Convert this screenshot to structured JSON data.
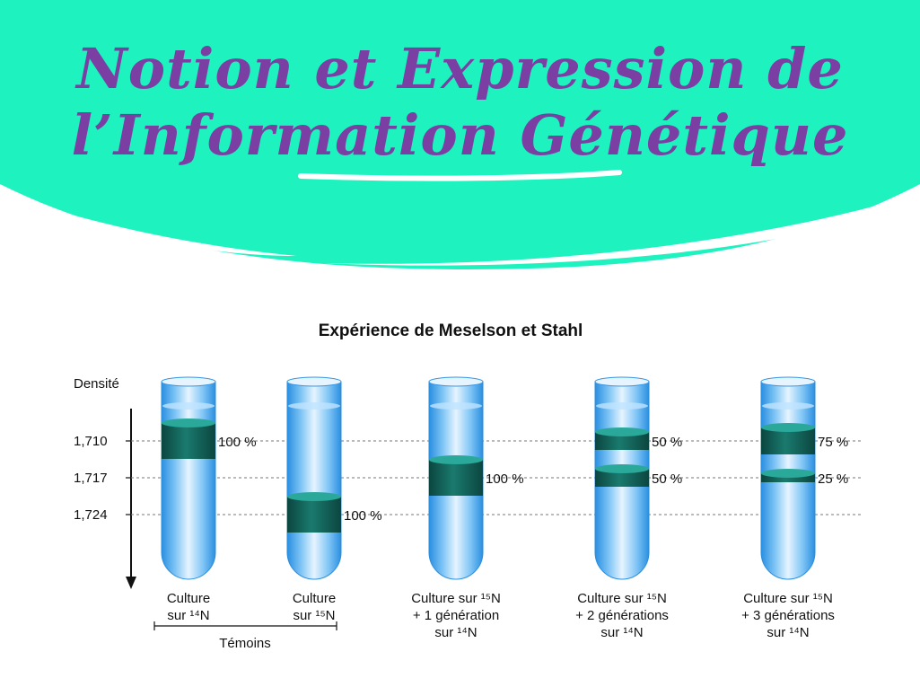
{
  "page": {
    "title_line1": "Notion et Expression  de",
    "title_line2": "l’Information  Génétique"
  },
  "diagram": {
    "title": "Expérience de Meselson et Stahl",
    "y_axis_label": "Densité",
    "density_levels": [
      {
        "key": "d1710",
        "label": "1,710"
      },
      {
        "key": "d1717",
        "label": "1,717"
      },
      {
        "key": "d1724",
        "label": "1,724"
      }
    ],
    "tubes": [
      {
        "label_lines": [
          "Culture",
          "sur ¹⁴N"
        ],
        "bands": [
          {
            "density": "d1710",
            "percent": 100,
            "label": "100 %"
          }
        ]
      },
      {
        "label_lines": [
          "Culture",
          "sur ¹⁵N"
        ],
        "bands": [
          {
            "density": "d1724",
            "percent": 100,
            "label": "100 %"
          }
        ]
      },
      {
        "label_lines": [
          "Culture sur ¹⁵N",
          "+ 1 génération",
          "sur ¹⁴N"
        ],
        "bands": [
          {
            "density": "d1717",
            "percent": 100,
            "label": "100 %"
          }
        ]
      },
      {
        "label_lines": [
          "Culture sur ¹⁵N",
          "+ 2 générations",
          "sur ¹⁴N"
        ],
        "bands": [
          {
            "density": "d1710",
            "percent": 50,
            "label": "50 %"
          },
          {
            "density": "d1717",
            "percent": 50,
            "label": "50 %"
          }
        ]
      },
      {
        "label_lines": [
          "Culture sur ¹⁵N",
          "+ 3 générations",
          "sur ¹⁴N"
        ],
        "bands": [
          {
            "density": "d1710",
            "percent": 75,
            "label": "75 %"
          },
          {
            "density": "d1717",
            "percent": 25,
            "label": "25 %"
          }
        ]
      }
    ],
    "controls_label": "Témoins"
  },
  "colors": {
    "banner": "#1ef2bf",
    "title": "#7b3fa3",
    "tube_light": "#e6f4ff",
    "tube_mid": "#7cc3f5",
    "tube_dark": "#2a8fe0",
    "band_dark": "#0f5a52",
    "band_top": "#2aa89a"
  }
}
